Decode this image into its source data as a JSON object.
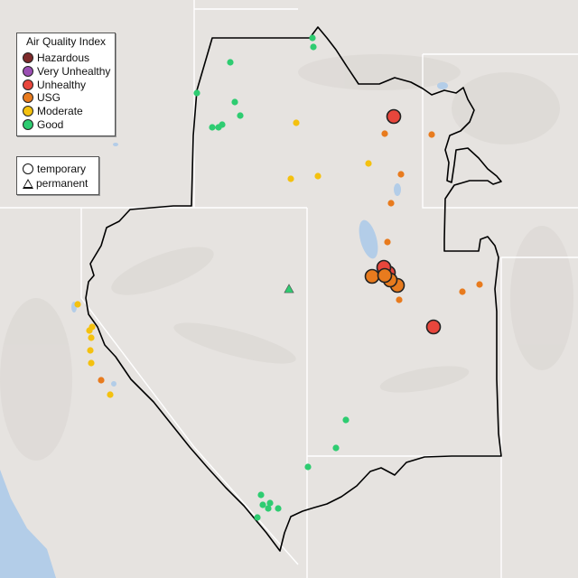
{
  "legend": {
    "title": "Air Quality Index",
    "categories": [
      {
        "label": "Hazardous",
        "color": "#7e2b2b"
      },
      {
        "label": "Very Unhealthy",
        "color": "#9b4fb3"
      },
      {
        "label": "Unhealthy",
        "color": "#e8463c"
      },
      {
        "label": "USG",
        "color": "#e87b1e"
      },
      {
        "label": "Moderate",
        "color": "#f4c10f"
      },
      {
        "label": "Good",
        "color": "#2ecc71"
      }
    ]
  },
  "monitor_types": {
    "temporary": "temporary",
    "permanent": "permanent"
  },
  "map_style": {
    "land": "#e6e3e0",
    "water": "#b3cde8",
    "state_line": "#ffffff",
    "region_outline": "#000000"
  },
  "monitors": [
    {
      "aqi": "Unhealthy",
      "type": "temporary",
      "large": true
    },
    {
      "aqi": "Unhealthy",
      "type": "temporary",
      "large": true
    },
    {
      "aqi": "Unhealthy",
      "type": "temporary",
      "large": true
    },
    {
      "aqi": "Unhealthy",
      "type": "temporary",
      "large": true
    },
    {
      "aqi": "USG",
      "type": "temporary",
      "large": true
    },
    {
      "aqi": "USG",
      "type": "temporary",
      "large": true
    },
    {
      "aqi": "USG",
      "type": "temporary",
      "large": true
    },
    {
      "aqi": "USG",
      "type": "temporary",
      "large": true
    },
    {
      "aqi": "USG",
      "type": "temporary"
    },
    {
      "aqi": "USG",
      "type": "temporary"
    },
    {
      "aqi": "USG",
      "type": "temporary"
    },
    {
      "aqi": "USG",
      "type": "temporary"
    },
    {
      "aqi": "USG",
      "type": "temporary"
    },
    {
      "aqi": "USG",
      "type": "temporary"
    },
    {
      "aqi": "USG",
      "type": "temporary"
    },
    {
      "aqi": "USG",
      "type": "temporary"
    },
    {
      "aqi": "USG",
      "type": "temporary"
    },
    {
      "aqi": "Moderate",
      "type": "temporary"
    },
    {
      "aqi": "Moderate",
      "type": "temporary"
    },
    {
      "aqi": "Moderate",
      "type": "temporary"
    },
    {
      "aqi": "Moderate",
      "type": "temporary"
    },
    {
      "aqi": "Moderate",
      "type": "temporary"
    },
    {
      "aqi": "Moderate",
      "type": "temporary"
    },
    {
      "aqi": "Moderate",
      "type": "temporary"
    },
    {
      "aqi": "Moderate",
      "type": "temporary"
    },
    {
      "aqi": "Moderate",
      "type": "temporary"
    },
    {
      "aqi": "Moderate",
      "type": "temporary"
    },
    {
      "aqi": "Moderate",
      "type": "temporary"
    },
    {
      "aqi": "Good",
      "type": "temporary"
    },
    {
      "aqi": "Good",
      "type": "temporary"
    },
    {
      "aqi": "Good",
      "type": "temporary"
    },
    {
      "aqi": "Good",
      "type": "temporary"
    },
    {
      "aqi": "Good",
      "type": "temporary"
    },
    {
      "aqi": "Good",
      "type": "temporary"
    },
    {
      "aqi": "Good",
      "type": "temporary"
    },
    {
      "aqi": "Good",
      "type": "temporary"
    },
    {
      "aqi": "Good",
      "type": "temporary"
    },
    {
      "aqi": "Good",
      "type": "temporary"
    },
    {
      "aqi": "Good",
      "type": "temporary"
    },
    {
      "aqi": "Good",
      "type": "temporary"
    },
    {
      "aqi": "Good",
      "type": "temporary"
    },
    {
      "aqi": "Good",
      "type": "temporary"
    },
    {
      "aqi": "Good",
      "type": "temporary"
    },
    {
      "aqi": "Good",
      "type": "temporary"
    },
    {
      "aqi": "Good",
      "type": "temporary"
    },
    {
      "aqi": "Good",
      "type": "temporary"
    },
    {
      "aqi": "Good",
      "type": "permanent"
    },
    {
      "aqi": "Good",
      "type": "permanent"
    }
  ]
}
